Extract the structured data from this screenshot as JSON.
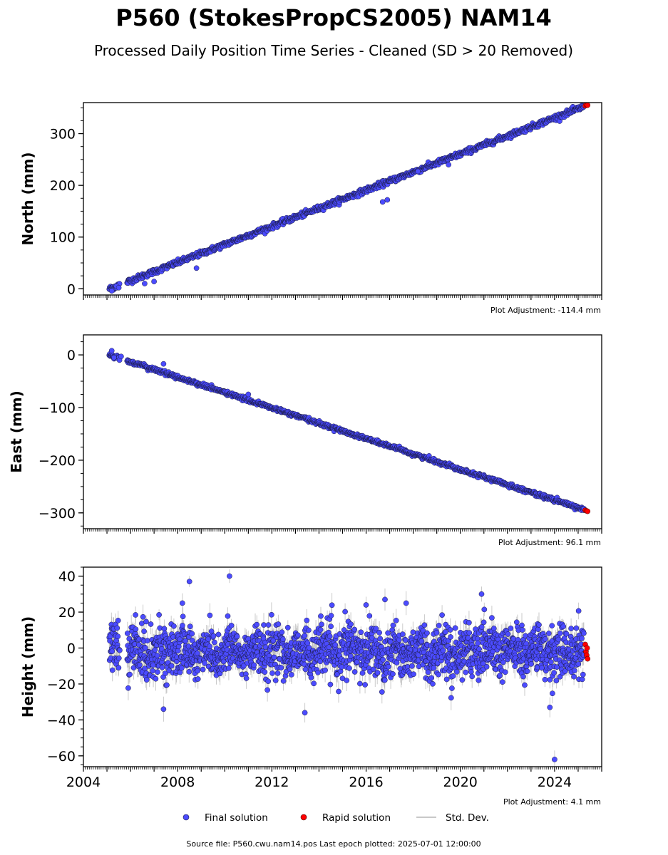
{
  "header": {
    "title": "P560 (StokesPropCS2005) NAM14",
    "subtitle": "Processed Daily Position Time Series - Cleaned (SD > 20 Removed)"
  },
  "legend": {
    "final": "Final solution",
    "rapid": "Rapid solution",
    "sd": "Std. Dev."
  },
  "footer": {
    "source": "Source file: P560.cwu.nam14.pos  Last epoch plotted: 2025-07-01 12:00:00"
  },
  "colors": {
    "final": "#4b4bff",
    "rapid": "#ff0000",
    "sd": "#b5b5b5",
    "edge": "#1a1a40"
  },
  "chart_data": [
    {
      "type": "scatter",
      "ylabel": "North (mm)",
      "xlim": [
        2004.0,
        2026.0
      ],
      "ylim": [
        -12,
        360
      ],
      "yticks": [
        0,
        100,
        200,
        300
      ],
      "show_xticklabels": false,
      "adjustment": "Plot Adjustment: -114.4 mm",
      "trend": {
        "start": [
          2005.1,
          0
        ],
        "end": [
          2025.4,
          355
        ]
      },
      "noise_mm": 2.5,
      "outliers": [
        [
          2005.2,
          -4
        ],
        [
          2005.4,
          5
        ],
        [
          2005.5,
          2
        ],
        [
          2006.6,
          10
        ],
        [
          2007.0,
          14
        ],
        [
          2008.8,
          40
        ],
        [
          2016.7,
          168
        ],
        [
          2016.9,
          172
        ],
        [
          2018.2,
          227
        ],
        [
          2019.5,
          240
        ]
      ],
      "rapid": [
        [
          2025.3,
          354
        ],
        [
          2025.35,
          356
        ],
        [
          2025.4,
          355
        ]
      ]
    },
    {
      "type": "scatter",
      "ylabel": "East (mm)",
      "xlim": [
        2004.0,
        2026.0
      ],
      "ylim": [
        -330,
        38
      ],
      "yticks": [
        0,
        -100,
        -200,
        -300
      ],
      "show_xticklabels": false,
      "adjustment": "Plot Adjustment: 96.1 mm",
      "trend": {
        "start": [
          2005.1,
          0
        ],
        "end": [
          2025.4,
          -296
        ]
      },
      "noise_mm": 1.8,
      "outliers": [
        [
          2005.2,
          8
        ],
        [
          2005.3,
          -5
        ],
        [
          2005.6,
          -3
        ],
        [
          2007.4,
          -17
        ],
        [
          2011.0,
          -75
        ]
      ],
      "rapid": [
        [
          2025.3,
          -295
        ],
        [
          2025.35,
          -296
        ],
        [
          2025.4,
          -297
        ]
      ]
    },
    {
      "type": "scatter",
      "ylabel": "Height (mm)",
      "xlim": [
        2004.0,
        2026.0
      ],
      "ylim": [
        -66,
        45
      ],
      "yticks": [
        40,
        20,
        0,
        -20,
        -40,
        -60
      ],
      "xticks": [
        2004,
        2008,
        2012,
        2016,
        2020,
        2024
      ],
      "show_xticklabels": true,
      "adjustment": "Plot Adjustment: 4.1 mm",
      "trend": {
        "start": [
          2005.1,
          0
        ],
        "end": [
          2025.4,
          0
        ]
      },
      "noise_mm": 7,
      "outliers": [
        [
          2007.4,
          -34
        ],
        [
          2008.5,
          37
        ],
        [
          2008.2,
          25
        ],
        [
          2010.2,
          40
        ],
        [
          2013.4,
          -36
        ],
        [
          2020.9,
          30
        ],
        [
          2024.0,
          -62
        ],
        [
          2023.8,
          -33
        ],
        [
          2016.8,
          27
        ],
        [
          2017.7,
          25
        ],
        [
          2016.0,
          24
        ]
      ],
      "rapid": [
        [
          2025.3,
          2
        ],
        [
          2025.33,
          -2
        ],
        [
          2025.36,
          -4
        ],
        [
          2025.4,
          -6
        ],
        [
          2025.38,
          0
        ]
      ]
    }
  ]
}
